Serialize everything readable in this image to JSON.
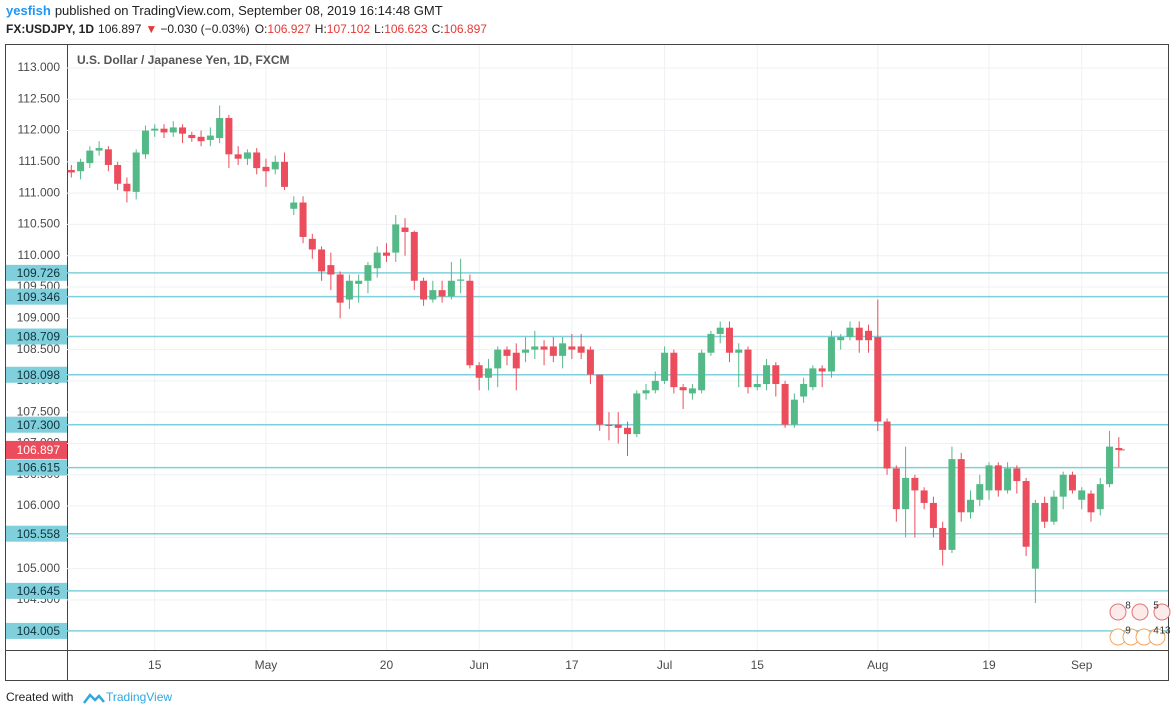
{
  "header": {
    "author": "yesfish",
    "published": "published on TradingView.com, September 08, 2019 16:14:48 GMT",
    "symbol": "FX:USDJPY, 1D",
    "price": "106.897",
    "arrow": "▼",
    "change": "−0.030 (−0.03%)",
    "o_label": "O:",
    "o": "106.927",
    "h_label": "H:",
    "h": "107.102",
    "l_label": "L:",
    "l": "106.623",
    "c_label": "C:",
    "c": "106.897"
  },
  "footer": {
    "created": "Created with",
    "brand": "TradingView"
  },
  "chart_data": {
    "type": "candlestick",
    "title": "U.S. Dollar / Japanese Yen, 1D, FXCM",
    "up_color": "#53b987",
    "down_color": "#eb4d5c",
    "level_color": "#7fd0dc",
    "grid": true,
    "ylim": [
      103.7,
      113.367
    ],
    "yticks": [
      {
        "value": 104.5,
        "label": "104.500"
      },
      {
        "value": 105,
        "label": "105.000"
      },
      {
        "value": 105.5,
        "label": "105.500"
      },
      {
        "value": 106,
        "label": "106.000"
      },
      {
        "value": 106.5,
        "label": "106.500"
      },
      {
        "value": 107,
        "label": "107.000"
      },
      {
        "value": 107.5,
        "label": "107.500"
      },
      {
        "value": 108,
        "label": "108.000"
      },
      {
        "value": 108.5,
        "label": "108.500"
      },
      {
        "value": 109,
        "label": "109.000"
      },
      {
        "value": 109.5,
        "label": "109.500"
      },
      {
        "value": 110,
        "label": "110.000"
      },
      {
        "value": 110.5,
        "label": "110.500"
      },
      {
        "value": 111,
        "label": "111.000"
      },
      {
        "value": 111.5,
        "label": "111.500"
      },
      {
        "value": 112,
        "label": "112.000"
      },
      {
        "value": 112.5,
        "label": "112.500"
      },
      {
        "value": 113,
        "label": "113.000"
      }
    ],
    "levels": [
      109.726,
      109.346,
      108.709,
      108.098,
      {
        "value": 107.3,
        "label": "107.300"
      },
      106.615,
      105.558,
      104.645,
      104.005
    ],
    "last_price": 106.897,
    "events": [
      "8",
      "5",
      "9",
      "4",
      "13"
    ],
    "categories": [
      null,
      null,
      null,
      null,
      null,
      null,
      null,
      null,
      null,
      "15",
      null,
      null,
      null,
      null,
      null,
      null,
      null,
      null,
      null,
      null,
      null,
      "May",
      null,
      null,
      null,
      null,
      null,
      null,
      null,
      null,
      null,
      null,
      null,
      null,
      "20",
      null,
      null,
      null,
      null,
      null,
      null,
      null,
      null,
      null,
      "Jun",
      null,
      null,
      null,
      null,
      null,
      null,
      null,
      null,
      null,
      "17",
      null,
      null,
      null,
      null,
      null,
      null,
      null,
      null,
      null,
      "Jul",
      null,
      null,
      null,
      null,
      null,
      null,
      null,
      null,
      null,
      "15",
      null,
      null,
      null,
      null,
      null,
      null,
      null,
      null,
      null,
      null,
      null,
      null,
      "Aug",
      null,
      null,
      null,
      null,
      null,
      null,
      null,
      null,
      null,
      null,
      null,
      "19",
      null,
      null,
      null,
      null,
      null,
      null,
      null,
      null,
      null,
      "Sep",
      null,
      null,
      null,
      null
    ],
    "open": [
      111.37,
      111.35,
      111.48,
      111.68,
      111.7,
      111.45,
      111.15,
      111.02,
      111.62,
      112.0,
      112.03,
      111.97,
      112.05,
      111.93,
      111.9,
      111.85,
      111.88,
      112.2,
      111.62,
      111.55,
      111.65,
      111.42,
      111.38,
      111.5,
      110.75,
      110.85,
      110.27,
      110.1,
      109.85,
      109.7,
      109.3,
      109.55,
      109.6,
      109.8,
      110.05,
      110.05,
      110.45,
      110.38,
      109.6,
      109.3,
      109.45,
      109.35,
      109.6,
      109.6,
      108.25,
      108.05,
      108.2,
      108.5,
      108.45,
      108.45,
      108.5,
      108.55,
      108.55,
      108.4,
      108.55,
      108.55,
      108.5,
      108.1,
      107.3,
      107.3,
      107.25,
      107.15,
      107.8,
      107.85,
      108.0,
      108.45,
      107.9,
      107.8,
      107.85,
      108.45,
      108.75,
      108.85,
      108.45,
      108.5,
      107.9,
      107.95,
      108.25,
      107.95,
      107.3,
      107.75,
      107.9,
      108.2,
      108.15,
      108.65,
      108.7,
      108.85,
      108.8,
      108.7,
      107.35,
      106.6,
      105.95,
      106.45,
      106.25,
      106.05,
      105.65,
      105.3,
      106.75,
      105.9,
      106.1,
      106.25,
      106.65,
      106.25,
      106.6,
      106.4,
      105.0,
      106.05,
      105.75,
      106.15,
      106.5,
      106.1,
      106.2,
      105.95,
      106.35,
      106.927
    ],
    "high": [
      111.45,
      111.55,
      111.75,
      111.83,
      111.75,
      111.5,
      111.25,
      111.7,
      112.08,
      112.1,
      112.1,
      112.15,
      112.1,
      111.98,
      112.0,
      112.05,
      112.4,
      112.25,
      111.75,
      111.7,
      111.72,
      111.55,
      111.6,
      111.65,
      110.95,
      110.95,
      110.35,
      110.15,
      110.05,
      109.75,
      109.7,
      109.7,
      109.9,
      110.15,
      110.2,
      110.65,
      110.6,
      110.4,
      109.65,
      109.6,
      109.6,
      109.9,
      109.95,
      109.7,
      108.3,
      108.35,
      108.55,
      108.55,
      108.6,
      108.7,
      108.8,
      108.65,
      108.7,
      108.7,
      108.75,
      108.75,
      108.55,
      108.1,
      107.5,
      107.5,
      107.35,
      107.85,
      107.95,
      108.15,
      108.55,
      108.5,
      107.95,
      107.95,
      108.5,
      108.8,
      108.95,
      108.95,
      108.6,
      108.55,
      108.1,
      108.35,
      108.3,
      108.0,
      107.8,
      108.05,
      108.25,
      108.25,
      108.8,
      108.75,
      108.95,
      108.95,
      108.9,
      109.3,
      107.4,
      106.65,
      106.95,
      106.5,
      106.3,
      106.15,
      105.75,
      106.95,
      106.85,
      106.25,
      106.5,
      106.7,
      106.7,
      106.7,
      106.65,
      106.45,
      106.1,
      106.15,
      106.25,
      106.55,
      106.55,
      106.3,
      106.25,
      106.45,
      107.2,
      107.102
    ],
    "low": [
      111.25,
      111.22,
      111.4,
      111.6,
      111.35,
      111.05,
      110.85,
      110.9,
      111.55,
      111.9,
      111.88,
      111.9,
      111.8,
      111.82,
      111.75,
      111.75,
      111.8,
      111.4,
      111.45,
      111.45,
      111.3,
      111.1,
      111.3,
      111.05,
      110.65,
      110.2,
      109.95,
      109.6,
      109.45,
      109.0,
      109.15,
      109.25,
      109.4,
      109.65,
      109.9,
      109.9,
      110.0,
      109.45,
      109.2,
      109.25,
      109.25,
      109.3,
      109.4,
      108.2,
      107.85,
      107.85,
      107.9,
      108.25,
      107.85,
      108.3,
      108.35,
      108.25,
      108.3,
      108.2,
      108.35,
      108.35,
      107.95,
      107.2,
      107.05,
      107.0,
      106.8,
      107.1,
      107.7,
      107.8,
      107.95,
      107.8,
      107.55,
      107.7,
      107.8,
      108.4,
      108.6,
      108.3,
      107.9,
      107.8,
      107.85,
      107.85,
      107.75,
      107.25,
      107.25,
      107.65,
      107.85,
      107.9,
      108.05,
      108.5,
      108.65,
      108.45,
      108.45,
      107.2,
      106.5,
      105.75,
      105.5,
      105.5,
      105.95,
      105.5,
      105.05,
      105.25,
      105.75,
      105.8,
      106.0,
      106.1,
      106.15,
      106.2,
      106.2,
      105.2,
      104.45,
      105.65,
      105.7,
      105.95,
      106.2,
      105.95,
      105.75,
      105.85,
      106.3,
      106.623
    ],
    "close": [
      111.33,
      111.5,
      111.68,
      111.72,
      111.45,
      111.15,
      111.03,
      111.65,
      112.0,
      112.03,
      111.97,
      112.05,
      111.95,
      111.88,
      111.83,
      111.92,
      112.2,
      111.62,
      111.55,
      111.65,
      111.4,
      111.35,
      111.5,
      111.1,
      110.85,
      110.3,
      110.1,
      109.75,
      109.7,
      109.25,
      109.6,
      109.6,
      109.85,
      110.05,
      110.0,
      110.5,
      110.38,
      109.6,
      109.3,
      109.45,
      109.35,
      109.6,
      109.62,
      108.25,
      108.05,
      108.2,
      108.5,
      108.4,
      108.2,
      108.5,
      108.55,
      108.5,
      108.4,
      108.6,
      108.5,
      108.45,
      108.1,
      107.3,
      107.28,
      107.25,
      107.15,
      107.8,
      107.85,
      108.0,
      108.45,
      107.9,
      107.85,
      107.88,
      108.45,
      108.75,
      108.85,
      108.45,
      108.5,
      107.9,
      107.95,
      108.25,
      107.95,
      107.3,
      107.7,
      107.95,
      108.2,
      108.15,
      108.7,
      108.7,
      108.85,
      108.65,
      108.65,
      107.35,
      106.6,
      105.95,
      106.45,
      106.25,
      106.05,
      105.65,
      105.3,
      106.75,
      105.9,
      106.1,
      106.35,
      106.65,
      106.25,
      106.6,
      106.4,
      105.35,
      106.05,
      105.75,
      106.15,
      106.5,
      106.25,
      106.25,
      105.9,
      106.35,
      106.95,
      106.897
    ]
  }
}
